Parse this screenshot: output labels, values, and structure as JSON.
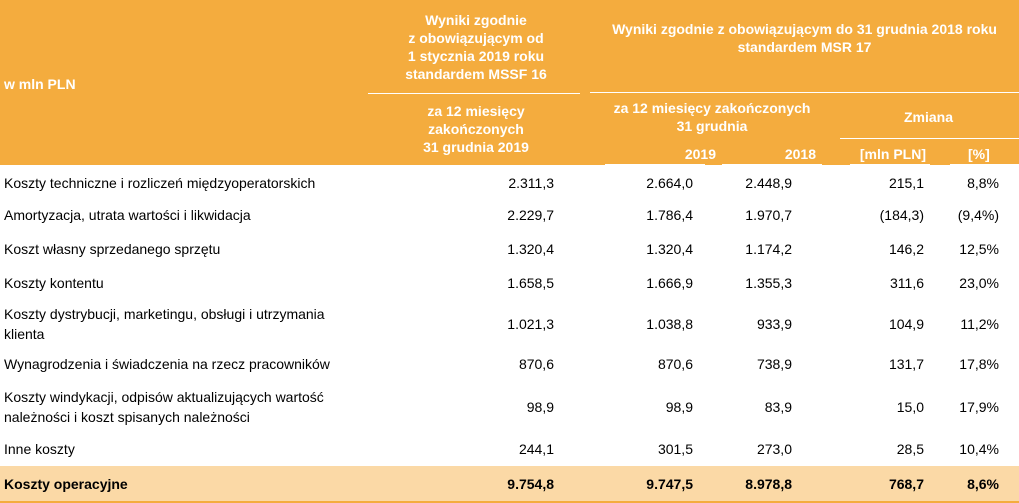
{
  "header": {
    "unit_label": "w mln PLN",
    "mssf_title": "Wyniki zgodnie\nz obowiązującym od\n1 stycznia 2019 roku\nstandardem MSSF 16",
    "mssf_period": "za 12 miesięcy\nzakończonych\n31 grudnia 2019",
    "msr_title": "Wyniki zgodnie z obowiązującym do 31 grudnia 2018 roku\nstandardem MSR 17",
    "msr_period": "za 12 miesięcy zakończonych\n31 grudnia",
    "change_label": "Zmiana",
    "col_2019": "2019",
    "col_2018": "2018",
    "col_mln": "[mln PLN]",
    "col_pct": "[%]"
  },
  "rows": [
    {
      "label": "Koszty techniczne i rozliczeń międzyoperatorskich",
      "mssf": "2.311,3",
      "y2019": "2.664,0",
      "y2018": "2.448,9",
      "change": "215,1",
      "pct": "8,8%"
    },
    {
      "label": "Amortyzacja, utrata wartości i likwidacja",
      "mssf": "2.229,7",
      "y2019": "1.786,4",
      "y2018": "1.970,7",
      "change": "(184,3)",
      "pct": "(9,4%)"
    },
    {
      "label": "Koszt własny sprzedanego sprzętu",
      "mssf": "1.320,4",
      "y2019": "1.320,4",
      "y2018": "1.174,2",
      "change": "146,2",
      "pct": "12,5%"
    },
    {
      "label": "Koszty kontentu",
      "mssf": "1.658,5",
      "y2019": "1.666,9",
      "y2018": "1.355,3",
      "change": "311,6",
      "pct": "23,0%"
    },
    {
      "label": "Koszty dystrybucji, marketingu, obsługi i utrzymania\nklienta",
      "mssf": "1.021,3",
      "y2019": "1.038,8",
      "y2018": "933,9",
      "change": "104,9",
      "pct": "11,2%"
    },
    {
      "label": "Wynagrodzenia i świadczenia na rzecz pracowników",
      "mssf": "870,6",
      "y2019": "870,6",
      "y2018": "738,9",
      "change": "131,7",
      "pct": "17,8%"
    },
    {
      "label": "Koszty windykacji, odpisów aktualizujących wartość\nnależności i koszt spisanych należności",
      "mssf": "98,9",
      "y2019": "98,9",
      "y2018": "83,9",
      "change": "15,0",
      "pct": "17,9%"
    },
    {
      "label": "Inne koszty",
      "mssf": "244,1",
      "y2019": "301,5",
      "y2018": "273,0",
      "change": "28,5",
      "pct": "10,4%"
    }
  ],
  "total": {
    "label": "Koszty operacyjne",
    "mssf": "9.754,8",
    "y2019": "9.747,5",
    "y2018": "8.978,8",
    "change": "768,7",
    "pct": "8,6%"
  },
  "colors": {
    "header_bg": "#f4ac3e",
    "total_bg": "#fbd9a6",
    "header_text": "#ffffff"
  }
}
